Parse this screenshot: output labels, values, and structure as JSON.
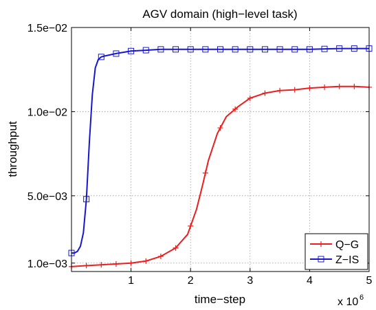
{
  "chart_data": {
    "type": "line",
    "title": "AGV domain (high−level task)",
    "xlabel": "time−step",
    "ylabel": "throughput",
    "x_exponent_label": "x 10",
    "x_exponent": "6",
    "xlim": [
      0,
      5
    ],
    "ylim": [
      0.0005,
      0.015
    ],
    "x_ticks": [
      1,
      2,
      3,
      4,
      5
    ],
    "x_tick_labels": [
      "1",
      "2",
      "3",
      "4",
      "5"
    ],
    "y_ticks": [
      0.001,
      0.005,
      0.01,
      0.015
    ],
    "y_tick_labels": [
      "1.0e−03",
      "5.0e−03",
      "1.0e−02",
      "1.5e−02"
    ],
    "grid": true,
    "legend_position": "bottom-right",
    "series": [
      {
        "name": "Q−G",
        "color": "#ee1c1c",
        "marker": "plus",
        "x": [
          0,
          0.25,
          0.5,
          0.75,
          1.0,
          1.25,
          1.5,
          1.75,
          1.95,
          2.1,
          2.2,
          2.3,
          2.45,
          2.6,
          2.8,
          3.0,
          3.25,
          3.5,
          3.75,
          4.0,
          4.25,
          4.5,
          4.75,
          5.0
        ],
        "y": [
          0.00079,
          0.00085,
          0.0009,
          0.00095,
          0.001,
          0.00112,
          0.0014,
          0.0019,
          0.0027,
          0.0042,
          0.0056,
          0.0071,
          0.0087,
          0.0097,
          0.0103,
          0.0108,
          0.0111,
          0.01125,
          0.0113,
          0.0114,
          0.01145,
          0.0115,
          0.0115,
          0.01145
        ],
        "marker_x": [
          0,
          0.25,
          0.5,
          0.75,
          1.0,
          1.25,
          1.5,
          1.75,
          2.0,
          2.25,
          2.5,
          2.75,
          3.0,
          3.25,
          3.5,
          3.75,
          4.0,
          4.25,
          4.5,
          4.75,
          5.0
        ]
      },
      {
        "name": "Z−IS",
        "color": "#1414d2",
        "marker": "square",
        "x": [
          0,
          0.05,
          0.1,
          0.15,
          0.2,
          0.25,
          0.3,
          0.35,
          0.4,
          0.45,
          0.5,
          0.55,
          0.75,
          1.0,
          1.25,
          1.5,
          2.0,
          2.5,
          3.0,
          3.5,
          4.0,
          4.5,
          5.0
        ],
        "y": [
          0.0016,
          0.0016,
          0.0017,
          0.002,
          0.0028,
          0.0048,
          0.0082,
          0.011,
          0.0126,
          0.0131,
          0.01325,
          0.0133,
          0.01345,
          0.0136,
          0.01365,
          0.0137,
          0.0137,
          0.0137,
          0.0137,
          0.0137,
          0.0137,
          0.01375,
          0.01375
        ],
        "marker_x": [
          0,
          0.25,
          0.5,
          0.75,
          1.0,
          1.25,
          1.5,
          1.75,
          2.0,
          2.25,
          2.5,
          2.75,
          3.0,
          3.25,
          3.5,
          3.75,
          4.0,
          4.25,
          4.5,
          4.75,
          5.0
        ]
      }
    ]
  }
}
